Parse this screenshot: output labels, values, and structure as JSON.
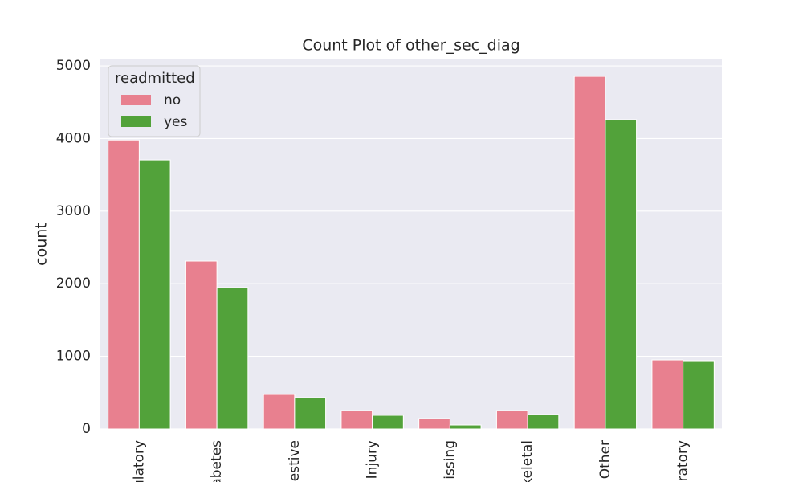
{
  "chart_data": {
    "type": "bar",
    "title": "Count Plot of other_sec_diag",
    "y_label": "count",
    "categories": [
      "ulatory",
      "abetes",
      "estive",
      "Injury",
      "issing",
      "keletal",
      "Other",
      "ratory"
    ],
    "legend_title": "readmitted",
    "legend_position": "upper left",
    "series": [
      {
        "name": "no",
        "color": "#e8808f",
        "values": [
          3980,
          2312,
          476,
          254,
          144,
          254,
          4856,
          951
        ]
      },
      {
        "name": "yes",
        "color": "#52a23a",
        "values": [
          3705,
          1947,
          431,
          188,
          55,
          199,
          4259,
          940
        ]
      }
    ],
    "ylim": [
      0,
      5100
    ],
    "yticks": [
      0,
      1000,
      2000,
      3000,
      4000,
      5000
    ],
    "grid": true
  }
}
